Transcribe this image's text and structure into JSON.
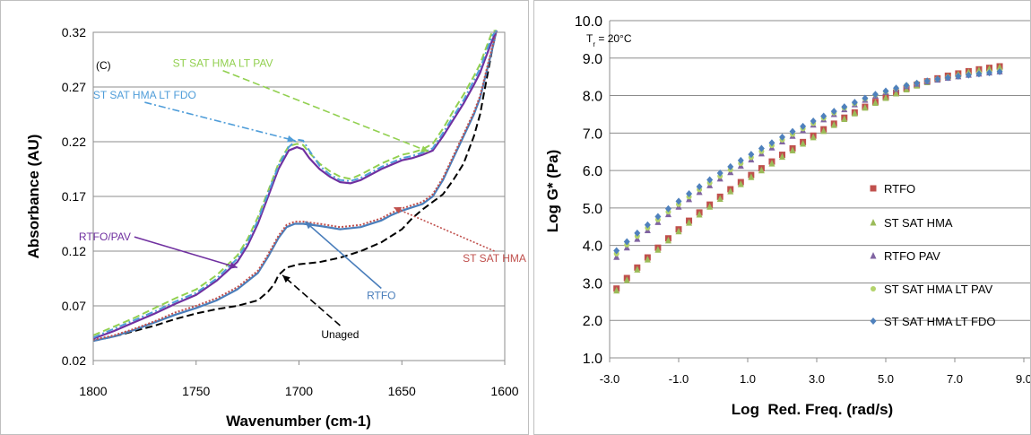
{
  "chart_data": [
    {
      "type": "line",
      "panel_label": "(C)",
      "xlabel": "Wavenumber (cm-1)",
      "ylabel": "Absorbance (AU)",
      "xlim": [
        1800,
        1600
      ],
      "ylim": [
        0.02,
        0.32
      ],
      "x_reversed": true,
      "x_ticks": [
        1800,
        1750,
        1700,
        1650,
        1600
      ],
      "y_ticks": [
        0.02,
        0.07,
        0.12,
        0.17,
        0.22,
        0.27,
        0.32
      ],
      "grid": "horizontal",
      "series": [
        {
          "name": "Unaged",
          "color": "#000000",
          "style": "dashed",
          "x": [
            1800,
            1790,
            1780,
            1770,
            1760,
            1750,
            1740,
            1730,
            1720,
            1715,
            1712,
            1710,
            1706,
            1700,
            1690,
            1680,
            1670,
            1660,
            1650,
            1645,
            1640,
            1635,
            1630,
            1625,
            1620,
            1615,
            1612,
            1610,
            1608,
            1606,
            1604
          ],
          "y": [
            0.038,
            0.042,
            0.047,
            0.052,
            0.058,
            0.063,
            0.067,
            0.07,
            0.075,
            0.083,
            0.09,
            0.098,
            0.105,
            0.108,
            0.11,
            0.114,
            0.12,
            0.128,
            0.14,
            0.15,
            0.158,
            0.165,
            0.172,
            0.185,
            0.2,
            0.225,
            0.245,
            0.265,
            0.285,
            0.305,
            0.325
          ]
        },
        {
          "name": "RTFO",
          "color": "#4a7ebb",
          "style": "solid",
          "x": [
            1800,
            1790,
            1780,
            1770,
            1760,
            1750,
            1740,
            1730,
            1720,
            1715,
            1710,
            1706,
            1702,
            1698,
            1690,
            1680,
            1670,
            1660,
            1655,
            1650,
            1645,
            1640,
            1635,
            1630,
            1625,
            1620,
            1615,
            1612,
            1610,
            1608,
            1606,
            1604
          ],
          "y": [
            0.038,
            0.042,
            0.048,
            0.055,
            0.062,
            0.068,
            0.075,
            0.085,
            0.1,
            0.115,
            0.132,
            0.142,
            0.145,
            0.145,
            0.143,
            0.14,
            0.142,
            0.148,
            0.153,
            0.157,
            0.16,
            0.163,
            0.17,
            0.185,
            0.205,
            0.225,
            0.245,
            0.26,
            0.275,
            0.29,
            0.305,
            0.325
          ]
        },
        {
          "name": "ST SAT HMA",
          "color": "#c0504d",
          "style": "dotted",
          "x": [
            1800,
            1790,
            1780,
            1770,
            1760,
            1750,
            1740,
            1730,
            1720,
            1715,
            1710,
            1706,
            1702,
            1698,
            1690,
            1680,
            1670,
            1660,
            1655,
            1650,
            1645,
            1640,
            1635,
            1630,
            1625,
            1620,
            1615,
            1612,
            1610,
            1608,
            1606,
            1604
          ],
          "y": [
            0.039,
            0.043,
            0.049,
            0.056,
            0.064,
            0.07,
            0.077,
            0.087,
            0.102,
            0.117,
            0.134,
            0.144,
            0.147,
            0.147,
            0.145,
            0.142,
            0.144,
            0.15,
            0.155,
            0.159,
            0.162,
            0.165,
            0.172,
            0.187,
            0.207,
            0.227,
            0.247,
            0.262,
            0.277,
            0.292,
            0.307,
            0.327
          ]
        },
        {
          "name": "RTFO/PAV",
          "color": "#7030a0",
          "style": "solid",
          "x": [
            1800,
            1790,
            1780,
            1770,
            1760,
            1750,
            1740,
            1730,
            1725,
            1720,
            1715,
            1710,
            1705,
            1701,
            1698,
            1695,
            1690,
            1685,
            1680,
            1675,
            1670,
            1660,
            1650,
            1645,
            1640,
            1635,
            1630,
            1625,
            1620,
            1615,
            1612,
            1610,
            1608,
            1606,
            1604
          ],
          "y": [
            0.04,
            0.047,
            0.055,
            0.063,
            0.072,
            0.08,
            0.093,
            0.11,
            0.125,
            0.145,
            0.17,
            0.195,
            0.212,
            0.215,
            0.213,
            0.205,
            0.195,
            0.188,
            0.183,
            0.182,
            0.185,
            0.195,
            0.203,
            0.205,
            0.208,
            0.212,
            0.225,
            0.24,
            0.255,
            0.272,
            0.283,
            0.293,
            0.303,
            0.313,
            0.325
          ]
        },
        {
          "name": "ST SAT HMA LT PAV",
          "color": "#92d050",
          "style": "dashed",
          "x": [
            1800,
            1790,
            1780,
            1770,
            1760,
            1750,
            1740,
            1730,
            1725,
            1720,
            1715,
            1710,
            1705,
            1701,
            1698,
            1695,
            1690,
            1685,
            1680,
            1675,
            1670,
            1660,
            1650,
            1645,
            1640,
            1635,
            1630,
            1625,
            1620,
            1615,
            1612,
            1610,
            1608,
            1606,
            1604
          ],
          "y": [
            0.043,
            0.051,
            0.059,
            0.068,
            0.077,
            0.085,
            0.098,
            0.116,
            0.131,
            0.151,
            0.175,
            0.2,
            0.216,
            0.218,
            0.217,
            0.21,
            0.2,
            0.193,
            0.188,
            0.186,
            0.19,
            0.2,
            0.208,
            0.21,
            0.213,
            0.218,
            0.232,
            0.248,
            0.263,
            0.28,
            0.291,
            0.301,
            0.311,
            0.321,
            0.33
          ]
        },
        {
          "name": "ST SAT HMA LT FDO",
          "color": "#4f9dd9",
          "style": "dashdot",
          "x": [
            1800,
            1790,
            1780,
            1770,
            1760,
            1750,
            1740,
            1730,
            1725,
            1720,
            1715,
            1710,
            1705,
            1701,
            1698,
            1695,
            1690,
            1685,
            1680,
            1675,
            1670,
            1660,
            1650,
            1645,
            1640,
            1635,
            1630,
            1625,
            1620,
            1615,
            1612,
            1610,
            1608,
            1606,
            1604
          ],
          "y": [
            0.041,
            0.049,
            0.057,
            0.065,
            0.074,
            0.082,
            0.095,
            0.113,
            0.128,
            0.148,
            0.173,
            0.198,
            0.215,
            0.222,
            0.221,
            0.212,
            0.198,
            0.19,
            0.185,
            0.184,
            0.187,
            0.197,
            0.205,
            0.207,
            0.21,
            0.214,
            0.228,
            0.243,
            0.258,
            0.276,
            0.287,
            0.297,
            0.307,
            0.317,
            0.327
          ]
        }
      ],
      "annotations": [
        {
          "text": "ST SAT HMA LT PAV",
          "color": "#92d050",
          "arrow_to_x": 1637,
          "arrow_to_y": 0.211,
          "label_x": 1737,
          "label_y": 0.285,
          "arrow_style": "dashed"
        },
        {
          "text": "ST SAT HMA LT FDO",
          "color": "#4f9dd9",
          "arrow_to_x": 1702,
          "arrow_to_y": 0.221,
          "label_x": 1775,
          "label_y": 0.256,
          "arrow_style": "dashdot"
        },
        {
          "text": "RTFO/PAV",
          "color": "#7030a0",
          "arrow_to_x": 1730,
          "arrow_to_y": 0.105,
          "label_x": 1780,
          "label_y": 0.133,
          "arrow_style": "solid"
        },
        {
          "text": "ST SAT HMA",
          "color": "#c0504d",
          "arrow_to_x": 1654,
          "arrow_to_y": 0.16,
          "label_x": 1605,
          "label_y": 0.12,
          "arrow_style": "dotted"
        },
        {
          "text": "RTFO",
          "color": "#4a7ebb",
          "arrow_to_x": 1697,
          "arrow_to_y": 0.147,
          "label_x": 1660,
          "label_y": 0.086,
          "arrow_style": "solid"
        },
        {
          "text": "Unaged",
          "color": "#000000",
          "arrow_to_x": 1708,
          "arrow_to_y": 0.098,
          "label_x": 1680,
          "label_y": 0.052,
          "arrow_style": "dashed"
        }
      ]
    },
    {
      "type": "scatter",
      "xlabel": "Log  Red. Freq. (rad/s)",
      "ylabel": "Log G* (Pa)",
      "xlim": [
        -3.0,
        9.0
      ],
      "ylim": [
        1.0,
        10.0
      ],
      "x_ticks": [
        -3.0,
        -1.0,
        1.0,
        3.0,
        5.0,
        7.0,
        9.0
      ],
      "y_ticks": [
        1.0,
        2.0,
        3.0,
        4.0,
        5.0,
        6.0,
        7.0,
        8.0,
        9.0,
        10.0
      ],
      "grid": "horizontal",
      "annotation": {
        "text": "T",
        "subscript": "r",
        "suffix": " = 20°C"
      },
      "legend_position": "right",
      "series": [
        {
          "name": "RTFO",
          "color": "#c0504d",
          "marker": "square",
          "x": [
            -2.8,
            -2.5,
            -2.2,
            -1.9,
            -1.6,
            -1.3,
            -1.0,
            -0.7,
            -0.4,
            -0.1,
            0.2,
            0.5,
            0.8,
            1.1,
            1.4,
            1.7,
            2.0,
            2.3,
            2.6,
            2.9,
            3.2,
            3.5,
            3.8,
            4.1,
            4.4,
            4.7,
            5.0,
            5.3,
            5.6,
            5.9,
            6.2,
            6.5,
            6.8,
            7.1,
            7.4,
            7.7,
            8.0,
            8.3
          ],
          "y": [
            2.85,
            3.13,
            3.41,
            3.68,
            3.94,
            4.19,
            4.43,
            4.66,
            4.88,
            5.09,
            5.3,
            5.5,
            5.69,
            5.88,
            6.06,
            6.24,
            6.42,
            6.59,
            6.76,
            6.93,
            7.1,
            7.25,
            7.41,
            7.55,
            7.7,
            7.83,
            7.96,
            8.08,
            8.19,
            8.29,
            8.38,
            8.46,
            8.53,
            8.59,
            8.65,
            8.7,
            8.74,
            8.78
          ]
        },
        {
          "name": "ST SAT HMA",
          "color": "#9bbb59",
          "marker": "triangle",
          "x": [
            -2.8,
            -2.5,
            -2.2,
            -1.9,
            -1.6,
            -1.3,
            -1.0,
            -0.7,
            -0.4,
            -0.1,
            0.2,
            0.5,
            0.8,
            1.1,
            1.4,
            1.7,
            2.0,
            2.3,
            2.6,
            2.9,
            3.2,
            3.5,
            3.8,
            4.1,
            4.4,
            4.7,
            5.0,
            5.3,
            5.6,
            5.9,
            6.2,
            6.5,
            6.8,
            7.1,
            7.4,
            7.7,
            8.0,
            8.3
          ],
          "y": [
            2.8,
            3.08,
            3.36,
            3.63,
            3.89,
            4.14,
            4.38,
            4.61,
            4.83,
            5.04,
            5.25,
            5.45,
            5.64,
            5.83,
            6.01,
            6.19,
            6.37,
            6.54,
            6.72,
            6.89,
            7.06,
            7.22,
            7.38,
            7.53,
            7.68,
            7.81,
            7.94,
            8.06,
            8.17,
            8.27,
            8.36,
            8.44,
            8.51,
            8.57,
            8.63,
            8.68,
            8.72,
            8.76
          ]
        },
        {
          "name": "RTFO PAV",
          "color": "#8064a2",
          "marker": "triangle",
          "x": [
            -2.8,
            -2.5,
            -2.2,
            -1.9,
            -1.6,
            -1.3,
            -1.0,
            -0.7,
            -0.4,
            -0.1,
            0.2,
            0.5,
            0.8,
            1.1,
            1.4,
            1.7,
            2.0,
            2.3,
            2.6,
            2.9,
            3.2,
            3.5,
            3.8,
            4.1,
            4.4,
            4.7,
            5.0,
            5.3,
            5.6,
            5.9,
            6.2,
            6.5,
            6.8,
            7.1,
            7.4,
            7.7,
            8.0,
            8.3
          ],
          "y": [
            3.7,
            3.95,
            4.18,
            4.41,
            4.63,
            4.84,
            5.04,
            5.24,
            5.43,
            5.61,
            5.79,
            5.96,
            6.13,
            6.3,
            6.46,
            6.62,
            6.78,
            6.93,
            7.08,
            7.23,
            7.37,
            7.51,
            7.64,
            7.77,
            7.89,
            8.0,
            8.1,
            8.18,
            8.26,
            8.32,
            8.38,
            8.43,
            8.48,
            8.52,
            8.56,
            8.59,
            8.62,
            8.65
          ]
        },
        {
          "name": "ST SAT HMA LT PAV",
          "color": "#b3d36b",
          "marker": "circle",
          "x": [
            -2.8,
            -2.5,
            -2.2,
            -1.9,
            -1.6,
            -1.3,
            -1.0,
            -0.7,
            -0.4,
            -0.1,
            0.2,
            0.5,
            0.8,
            1.1,
            1.4,
            1.7,
            2.0,
            2.3,
            2.6,
            2.9,
            3.2,
            3.5,
            3.8,
            4.1,
            4.4,
            4.7,
            5.0,
            5.3,
            5.6,
            5.9,
            6.2,
            6.5,
            6.8,
            7.1,
            7.4,
            7.7,
            8.0,
            8.3
          ],
          "y": [
            3.78,
            4.02,
            4.25,
            4.47,
            4.69,
            4.9,
            5.1,
            5.3,
            5.49,
            5.67,
            5.85,
            6.02,
            6.19,
            6.35,
            6.51,
            6.67,
            6.82,
            6.97,
            7.12,
            7.26,
            7.4,
            7.54,
            7.67,
            7.79,
            7.91,
            8.02,
            8.11,
            8.19,
            8.27,
            8.33,
            8.39,
            8.44,
            8.49,
            8.53,
            8.57,
            8.6,
            8.63,
            8.66
          ]
        },
        {
          "name": "ST SAT HMA LT FDO",
          "color": "#4f81bd",
          "marker": "diamond",
          "x": [
            -2.8,
            -2.5,
            -2.2,
            -1.9,
            -1.6,
            -1.3,
            -1.0,
            -0.7,
            -0.4,
            -0.1,
            0.2,
            0.5,
            0.8,
            1.1,
            1.4,
            1.7,
            2.0,
            2.3,
            2.6,
            2.9,
            3.2,
            3.5,
            3.8,
            4.1,
            4.4,
            4.7,
            5.0,
            5.3,
            5.6,
            5.9,
            6.2,
            6.5,
            6.8,
            7.1,
            7.4,
            7.7,
            8.0,
            8.3
          ],
          "y": [
            3.86,
            4.1,
            4.33,
            4.55,
            4.77,
            4.98,
            5.18,
            5.38,
            5.57,
            5.75,
            5.93,
            6.1,
            6.27,
            6.43,
            6.59,
            6.74,
            6.89,
            7.04,
            7.18,
            7.32,
            7.45,
            7.58,
            7.7,
            7.82,
            7.93,
            8.03,
            8.12,
            8.2,
            8.27,
            8.33,
            8.39,
            8.44,
            8.48,
            8.52,
            8.55,
            8.58,
            8.61,
            8.64
          ]
        }
      ]
    }
  ]
}
